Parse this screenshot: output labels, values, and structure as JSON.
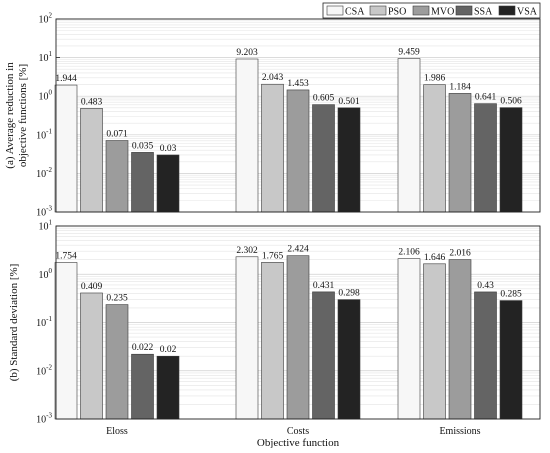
{
  "chart_data": {
    "type": "bar",
    "xlabel": "Objective function",
    "categories": [
      "Eloss",
      "Costs",
      "Emissions"
    ],
    "series_names": [
      "CSA",
      "PSO",
      "MVO",
      "SSA",
      "VSA"
    ],
    "colors": {
      "CSA": "#f7f7f7",
      "PSO": "#c8c8c8",
      "MVO": "#9c9c9c",
      "SSA": "#646464",
      "VSA": "#232323"
    },
    "legend": "top-right",
    "grid": true,
    "yscale": "log",
    "panels": [
      {
        "ylabel_line1": "(a) Average reduction in",
        "ylabel_line2": "objective functions [%]",
        "ylim": [
          0.001,
          100
        ],
        "yticks": [
          {
            "exp": "-3"
          },
          {
            "exp": "-2"
          },
          {
            "exp": "-1"
          },
          {
            "exp": "0"
          },
          {
            "exp": "1"
          },
          {
            "exp": "2"
          }
        ],
        "series": [
          {
            "name": "CSA",
            "values": [
              1.944,
              9.203,
              9.459
            ],
            "labels": [
              "1.944",
              "9.203",
              "9.459"
            ]
          },
          {
            "name": "PSO",
            "values": [
              0.483,
              2.043,
              1.986
            ],
            "labels": [
              "0.483",
              "2.043",
              "1.986"
            ]
          },
          {
            "name": "MVO",
            "values": [
              0.071,
              1.453,
              1.184
            ],
            "labels": [
              "0.071",
              "1.453",
              "1.184"
            ]
          },
          {
            "name": "SSA",
            "values": [
              0.035,
              0.605,
              0.641
            ],
            "labels": [
              "0.035",
              "0.605",
              "0.641"
            ]
          },
          {
            "name": "VSA",
            "values": [
              0.03,
              0.501,
              0.506
            ],
            "labels": [
              "0.03",
              "0.501",
              "0.506"
            ]
          }
        ]
      },
      {
        "ylabel_line1": "(b) Standard deviation [%]",
        "ylabel_line2": "",
        "ylim": [
          0.001,
          10
        ],
        "yticks": [
          {
            "exp": "-3"
          },
          {
            "exp": "-2"
          },
          {
            "exp": "-1"
          },
          {
            "exp": "0"
          },
          {
            "exp": "1"
          }
        ],
        "series": [
          {
            "name": "CSA",
            "values": [
              1.754,
              2.302,
              2.106
            ],
            "labels": [
              "1.754",
              "2.302",
              "2.106"
            ]
          },
          {
            "name": "PSO",
            "values": [
              0.409,
              1.765,
              1.646
            ],
            "labels": [
              "0.409",
              "1.765",
              "1.646"
            ]
          },
          {
            "name": "MVO",
            "values": [
              0.235,
              2.424,
              2.016
            ],
            "labels": [
              "0.235",
              "2.424",
              "2.016"
            ]
          },
          {
            "name": "SSA",
            "values": [
              0.022,
              0.431,
              0.43
            ],
            "labels": [
              "0.022",
              "0.431",
              "0.43"
            ]
          },
          {
            "name": "VSA",
            "values": [
              0.02,
              0.298,
              0.285
            ],
            "labels": [
              "0.02",
              "0.298",
              "0.285"
            ]
          }
        ]
      }
    ],
    "tick_base": "10"
  }
}
